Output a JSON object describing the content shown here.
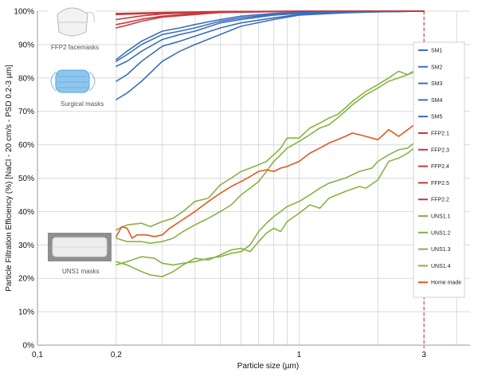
{
  "chart_data": {
    "type": "line",
    "title": "",
    "xlabel": "Particle size (µm)",
    "ylabel": "Particle Filtration Efficiency  (%) [NaCl - 20 cm/s - PSD 0.2-3 µm]",
    "x_scale": "log",
    "xlim": [
      0.1,
      4.5
    ],
    "ylim": [
      0,
      100
    ],
    "x_ticks": [
      {
        "value": 0.1,
        "label": "0,1",
        "color": "#222222"
      },
      {
        "value": 0.2,
        "label": "0,2",
        "color": "#e0201b"
      },
      {
        "value": 1,
        "label": "1",
        "color": "#222222"
      },
      {
        "value": 3,
        "label": "3",
        "color": "#e0201b"
      }
    ],
    "y_ticks": [
      "0%",
      "10%",
      "20%",
      "30%",
      "40%",
      "50%",
      "60%",
      "70%",
      "80%",
      "90%",
      "100%"
    ],
    "grid": true,
    "reference_line_x": 3,
    "legend_position": "right",
    "series": [
      {
        "name": "SM1",
        "color": "#3a6fbf",
        "points": [
          [
            0.2,
            85
          ],
          [
            0.22,
            87
          ],
          [
            0.25,
            90
          ],
          [
            0.3,
            93
          ],
          [
            0.35,
            94
          ],
          [
            0.4,
            95
          ],
          [
            0.5,
            97
          ],
          [
            0.6,
            98
          ],
          [
            0.8,
            99
          ],
          [
            1,
            99.5
          ],
          [
            1.5,
            99.8
          ],
          [
            2,
            99.9
          ],
          [
            3,
            100
          ]
        ]
      },
      {
        "name": "SM2",
        "color": "#3a6fbf",
        "points": [
          [
            0.2,
            83.5
          ],
          [
            0.22,
            85
          ],
          [
            0.25,
            88
          ],
          [
            0.3,
            91.5
          ],
          [
            0.35,
            93
          ],
          [
            0.4,
            94
          ],
          [
            0.5,
            96.5
          ],
          [
            0.6,
            97.5
          ],
          [
            0.8,
            98.8
          ],
          [
            1,
            99.3
          ],
          [
            1.5,
            99.7
          ],
          [
            2,
            99.9
          ],
          [
            3,
            100
          ]
        ]
      },
      {
        "name": "SM3",
        "color": "#3a6fbf",
        "points": [
          [
            0.2,
            79
          ],
          [
            0.22,
            81
          ],
          [
            0.25,
            85
          ],
          [
            0.3,
            89.5
          ],
          [
            0.35,
            91
          ],
          [
            0.4,
            92.5
          ],
          [
            0.5,
            95
          ],
          [
            0.6,
            96.5
          ],
          [
            0.8,
            98
          ],
          [
            1,
            99
          ],
          [
            1.5,
            99.6
          ],
          [
            2,
            99.8
          ],
          [
            3,
            100
          ]
        ]
      },
      {
        "name": "SM4",
        "color": "#3a6fbf",
        "points": [
          [
            0.2,
            73.5
          ],
          [
            0.22,
            75.5
          ],
          [
            0.25,
            79
          ],
          [
            0.3,
            85
          ],
          [
            0.35,
            88
          ],
          [
            0.4,
            90
          ],
          [
            0.5,
            93
          ],
          [
            0.6,
            95.5
          ],
          [
            0.8,
            97.5
          ],
          [
            1,
            98.8
          ],
          [
            1.5,
            99.5
          ],
          [
            2,
            99.8
          ],
          [
            3,
            100
          ]
        ]
      },
      {
        "name": "SM5",
        "color": "#3a6fbf",
        "points": [
          [
            0.2,
            85.5
          ],
          [
            0.22,
            88
          ],
          [
            0.25,
            91
          ],
          [
            0.3,
            94
          ],
          [
            0.35,
            95
          ],
          [
            0.4,
            96
          ],
          [
            0.5,
            97.5
          ],
          [
            0.6,
            98.5
          ],
          [
            0.8,
            99.3
          ],
          [
            1,
            99.7
          ],
          [
            1.5,
            99.9
          ],
          [
            2,
            100
          ],
          [
            3,
            100
          ]
        ]
      },
      {
        "name": "FFP2.1",
        "color": "#c8383c",
        "points": [
          [
            0.2,
            99
          ],
          [
            0.3,
            99.4
          ],
          [
            0.5,
            99.8
          ],
          [
            1,
            99.95
          ],
          [
            3,
            100
          ]
        ]
      },
      {
        "name": "FFP2.3",
        "color": "#c8383c",
        "points": [
          [
            0.2,
            96
          ],
          [
            0.22,
            96.6
          ],
          [
            0.25,
            97.6
          ],
          [
            0.3,
            98.5
          ],
          [
            0.4,
            99.3
          ],
          [
            0.5,
            99.7
          ],
          [
            1,
            99.95
          ],
          [
            3,
            100
          ]
        ]
      },
      {
        "name": "FFP2.4",
        "color": "#c8383c",
        "points": [
          [
            0.2,
            99.3
          ],
          [
            0.3,
            99.6
          ],
          [
            0.5,
            99.9
          ],
          [
            1,
            100
          ],
          [
            3,
            100
          ]
        ]
      },
      {
        "name": "FFP2.5",
        "color": "#c8383c",
        "points": [
          [
            0.2,
            95
          ],
          [
            0.22,
            95.8
          ],
          [
            0.25,
            97
          ],
          [
            0.3,
            98.2
          ],
          [
            0.4,
            99
          ],
          [
            0.5,
            99.6
          ],
          [
            1,
            99.95
          ],
          [
            3,
            100
          ]
        ]
      },
      {
        "name": "FFP2.2",
        "color": "#c8383c",
        "points": [
          [
            0.2,
            97.5
          ],
          [
            0.25,
            98.6
          ],
          [
            0.3,
            99.2
          ],
          [
            0.4,
            99.6
          ],
          [
            0.5,
            99.85
          ],
          [
            1,
            100
          ],
          [
            3,
            100
          ]
        ]
      },
      {
        "name": "UNS1.1",
        "color": "#86b342",
        "points": [
          [
            0.2,
            25
          ],
          [
            0.22,
            24
          ],
          [
            0.25,
            22
          ],
          [
            0.27,
            21
          ],
          [
            0.3,
            20.5
          ],
          [
            0.33,
            22
          ],
          [
            0.36,
            24
          ],
          [
            0.4,
            26
          ],
          [
            0.45,
            25.5
          ],
          [
            0.5,
            27
          ],
          [
            0.55,
            28.5
          ],
          [
            0.6,
            29
          ],
          [
            0.65,
            28
          ],
          [
            0.7,
            31
          ],
          [
            0.75,
            33.5
          ],
          [
            0.8,
            35
          ],
          [
            0.85,
            34
          ],
          [
            0.9,
            37
          ],
          [
            1,
            39.5
          ],
          [
            1.1,
            42
          ],
          [
            1.2,
            41
          ],
          [
            1.3,
            44
          ],
          [
            1.5,
            46
          ],
          [
            1.7,
            47.5
          ],
          [
            1.8,
            47
          ],
          [
            2,
            49.5
          ],
          [
            2.2,
            55
          ],
          [
            2.4,
            56
          ],
          [
            2.6,
            57.5
          ],
          [
            2.8,
            59.5
          ],
          [
            3,
            60.5
          ]
        ]
      },
      {
        "name": "UNS1.2",
        "color": "#86b342",
        "points": [
          [
            0.2,
            24
          ],
          [
            0.22,
            25
          ],
          [
            0.25,
            26.5
          ],
          [
            0.28,
            26
          ],
          [
            0.3,
            24.5
          ],
          [
            0.33,
            24
          ],
          [
            0.36,
            24.5
          ],
          [
            0.4,
            25
          ],
          [
            0.45,
            26
          ],
          [
            0.5,
            26.5
          ],
          [
            0.55,
            27.5
          ],
          [
            0.6,
            28
          ],
          [
            0.65,
            30
          ],
          [
            0.7,
            34
          ],
          [
            0.75,
            36.5
          ],
          [
            0.8,
            38.5
          ],
          [
            0.85,
            40
          ],
          [
            0.9,
            41.5
          ],
          [
            1,
            43
          ],
          [
            1.1,
            45
          ],
          [
            1.2,
            47
          ],
          [
            1.3,
            48.5
          ],
          [
            1.5,
            50
          ],
          [
            1.7,
            52
          ],
          [
            1.9,
            53
          ],
          [
            2,
            55
          ],
          [
            2.2,
            57
          ],
          [
            2.4,
            58.5
          ],
          [
            2.6,
            59
          ],
          [
            2.8,
            61
          ],
          [
            3,
            61.5
          ]
        ]
      },
      {
        "name": "UNS1.3",
        "color": "#86b342",
        "points": [
          [
            0.2,
            34.5
          ],
          [
            0.22,
            36
          ],
          [
            0.25,
            36.5
          ],
          [
            0.27,
            35.5
          ],
          [
            0.3,
            37
          ],
          [
            0.33,
            38
          ],
          [
            0.36,
            40
          ],
          [
            0.4,
            43
          ],
          [
            0.45,
            44
          ],
          [
            0.5,
            48
          ],
          [
            0.55,
            50
          ],
          [
            0.6,
            52
          ],
          [
            0.65,
            53
          ],
          [
            0.7,
            54
          ],
          [
            0.75,
            55
          ],
          [
            0.8,
            57
          ],
          [
            0.85,
            59
          ],
          [
            0.9,
            62
          ],
          [
            1,
            62
          ],
          [
            1.1,
            65
          ],
          [
            1.2,
            66.5
          ],
          [
            1.3,
            68
          ],
          [
            1.4,
            69
          ],
          [
            1.5,
            71
          ],
          [
            1.6,
            73
          ],
          [
            1.8,
            76
          ],
          [
            2,
            78
          ],
          [
            2.2,
            80
          ],
          [
            2.4,
            82
          ],
          [
            2.6,
            81
          ],
          [
            2.8,
            82.5
          ],
          [
            3,
            85
          ]
        ]
      },
      {
        "name": "UNS1.4",
        "color": "#86b342",
        "points": [
          [
            0.2,
            32
          ],
          [
            0.22,
            31
          ],
          [
            0.25,
            31
          ],
          [
            0.27,
            30.5
          ],
          [
            0.3,
            31
          ],
          [
            0.33,
            32
          ],
          [
            0.36,
            34
          ],
          [
            0.4,
            36
          ],
          [
            0.45,
            38
          ],
          [
            0.5,
            40
          ],
          [
            0.55,
            42
          ],
          [
            0.6,
            45
          ],
          [
            0.65,
            47
          ],
          [
            0.7,
            49
          ],
          [
            0.75,
            52
          ],
          [
            0.8,
            55
          ],
          [
            0.85,
            57
          ],
          [
            0.9,
            59
          ],
          [
            1,
            61
          ],
          [
            1.1,
            63
          ],
          [
            1.2,
            65
          ],
          [
            1.3,
            66
          ],
          [
            1.4,
            68
          ],
          [
            1.5,
            70
          ],
          [
            1.6,
            72
          ],
          [
            1.8,
            75
          ],
          [
            2,
            77
          ],
          [
            2.2,
            79
          ],
          [
            2.4,
            80
          ],
          [
            2.6,
            81
          ],
          [
            2.8,
            82
          ],
          [
            3,
            83
          ]
        ]
      },
      {
        "name": "Home made",
        "color": "#e4571f",
        "points": [
          [
            0.2,
            32.5
          ],
          [
            0.21,
            35.5
          ],
          [
            0.22,
            35
          ],
          [
            0.23,
            32
          ],
          [
            0.24,
            33
          ],
          [
            0.26,
            33
          ],
          [
            0.28,
            32.5
          ],
          [
            0.3,
            33
          ],
          [
            0.32,
            35
          ],
          [
            0.35,
            37
          ],
          [
            0.4,
            40
          ],
          [
            0.45,
            43
          ],
          [
            0.5,
            45.5
          ],
          [
            0.55,
            47.5
          ],
          [
            0.6,
            49
          ],
          [
            0.65,
            50.5
          ],
          [
            0.7,
            52
          ],
          [
            0.75,
            52.5
          ],
          [
            0.8,
            52
          ],
          [
            0.85,
            53
          ],
          [
            0.9,
            53.5
          ],
          [
            1,
            55
          ],
          [
            1.1,
            57.5
          ],
          [
            1.2,
            59
          ],
          [
            1.3,
            60.5
          ],
          [
            1.4,
            61.5
          ],
          [
            1.5,
            62.5
          ],
          [
            1.6,
            63.5
          ],
          [
            1.7,
            63
          ],
          [
            1.8,
            62.5
          ],
          [
            2,
            61.5
          ],
          [
            2.1,
            63
          ],
          [
            2.2,
            64.5
          ],
          [
            2.3,
            63.5
          ],
          [
            2.4,
            62.5
          ],
          [
            2.6,
            64.5
          ],
          [
            2.8,
            66.5
          ],
          [
            3,
            68
          ]
        ]
      }
    ],
    "insets": [
      {
        "label": "FFP2 facemasks",
        "icon": "ffp2-mask-icon"
      },
      {
        "label": "Surgical masks",
        "icon": "surgical-mask-icon"
      },
      {
        "label": "UNS1 masks",
        "icon": "uns1-mask-icon"
      }
    ]
  }
}
